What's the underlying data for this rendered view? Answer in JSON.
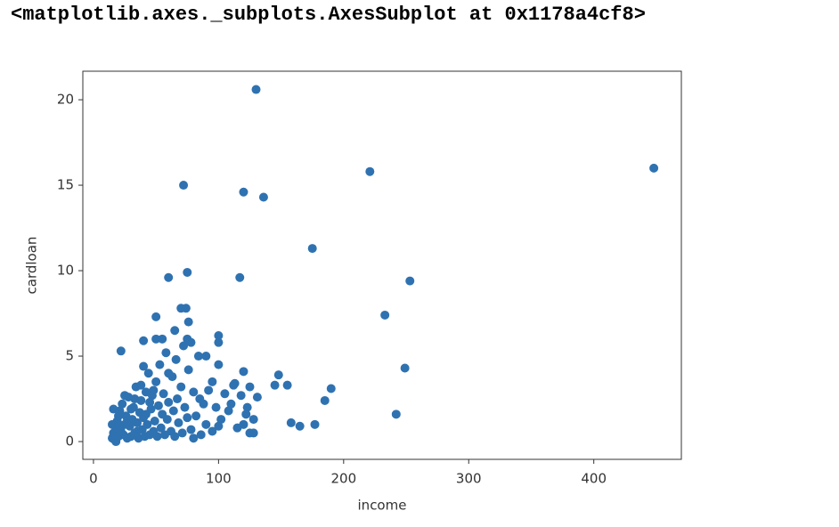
{
  "header": {
    "text": "<matplotlib.axes._subplots.AxesSubplot at 0x1178a4cf8>"
  },
  "chart_data": {
    "type": "scatter",
    "xlabel": "income",
    "ylabel": "cardloan",
    "xlim": [
      -8.5,
      470
    ],
    "ylim": [
      -1.04,
      21.67
    ],
    "xticks": [
      0,
      100,
      200,
      300,
      400
    ],
    "yticks": [
      0,
      5,
      10,
      15,
      20
    ],
    "series": [
      {
        "color": "#2f72b1",
        "x": [
          130,
          448,
          221,
          72,
          120,
          136,
          175,
          253,
          75,
          60,
          117,
          233,
          249,
          242,
          190,
          185,
          177,
          165,
          158,
          155,
          148,
          145,
          131,
          128,
          125,
          120,
          100,
          70,
          74,
          50,
          22,
          40,
          76,
          15,
          16,
          17,
          18,
          19,
          20,
          21,
          22,
          23,
          24,
          25,
          26,
          27,
          28,
          29,
          30,
          31,
          32,
          33,
          34,
          35,
          36,
          37,
          38,
          39,
          40,
          41,
          42,
          43,
          44,
          45,
          46,
          47,
          48,
          49,
          50,
          51,
          52,
          53,
          54,
          55,
          56,
          57,
          58,
          59,
          60,
          62,
          63,
          64,
          65,
          66,
          67,
          68,
          70,
          71,
          72,
          73,
          75,
          76,
          78,
          80,
          82,
          84,
          86,
          88,
          90,
          92,
          95,
          98,
          100,
          102,
          105,
          108,
          112,
          115,
          118,
          122,
          15,
          16,
          18,
          20,
          22,
          25,
          27,
          30,
          33,
          35,
          38,
          40,
          42,
          45,
          48,
          50,
          55,
          60,
          65,
          75,
          78,
          80,
          85,
          90,
          95,
          100,
          100,
          110,
          113,
          120,
          123,
          125,
          128
        ],
        "y": [
          20.6,
          16.0,
          15.8,
          15.0,
          14.6,
          14.3,
          11.3,
          9.4,
          9.9,
          9.6,
          9.6,
          7.4,
          4.3,
          1.6,
          3.1,
          2.4,
          1.0,
          0.9,
          1.1,
          3.3,
          3.9,
          3.3,
          2.6,
          0.5,
          0.5,
          4.1,
          6.2,
          7.8,
          7.8,
          7.3,
          5.3,
          5.9,
          7.0,
          0.2,
          0.5,
          0.1,
          0.8,
          1.2,
          0.3,
          1.8,
          0.6,
          2.2,
          0.4,
          1.0,
          1.5,
          0.2,
          2.6,
          0.9,
          0.3,
          1.3,
          2.0,
          0.5,
          3.2,
          1.1,
          0.2,
          1.7,
          2.4,
          0.7,
          1.4,
          0.3,
          2.9,
          1.0,
          4.0,
          0.4,
          1.9,
          2.7,
          0.6,
          1.2,
          3.5,
          0.3,
          2.1,
          4.5,
          0.8,
          1.6,
          2.8,
          0.4,
          5.2,
          1.3,
          2.3,
          0.6,
          3.8,
          1.8,
          0.3,
          4.8,
          2.5,
          1.1,
          3.2,
          0.5,
          5.6,
          2.0,
          1.4,
          4.2,
          0.7,
          2.9,
          1.5,
          5.0,
          0.4,
          2.2,
          1.0,
          3.0,
          0.6,
          2.0,
          4.5,
          1.3,
          2.8,
          1.8,
          3.3,
          0.8,
          2.7,
          1.6,
          1.0,
          1.9,
          0.0,
          1.5,
          0.9,
          2.7,
          1.2,
          1.9,
          2.5,
          0.6,
          3.3,
          4.4,
          1.6,
          2.3,
          3.0,
          6.0,
          6.0,
          4.0,
          6.5,
          6.0,
          5.8,
          0.2,
          2.5,
          5.0,
          3.5,
          5.8,
          0.9,
          2.2,
          3.4,
          1.0,
          2.0,
          3.2,
          1.3
        ]
      }
    ]
  }
}
